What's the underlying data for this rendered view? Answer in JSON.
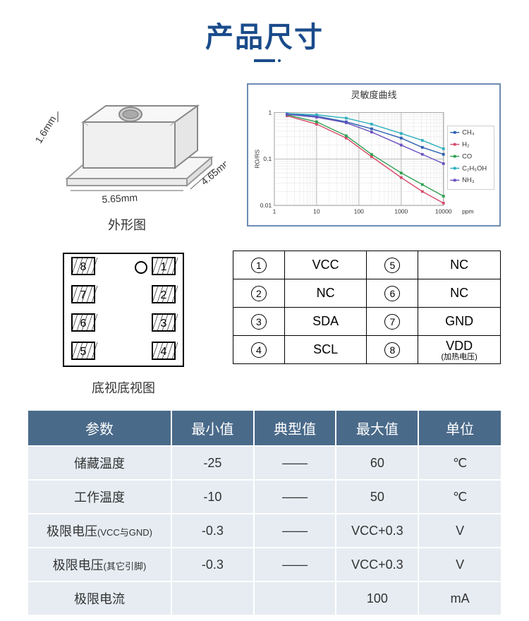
{
  "title": "产品尺寸",
  "package": {
    "caption": "外形图",
    "dim_h": "1.6mm",
    "dim_l": "5.65mm",
    "dim_w": "4.65mm",
    "body_fill": "#f7f7f7",
    "body_stroke": "#888888",
    "hole_fill": "#cccccc"
  },
  "chart": {
    "title": "灵敏度曲线",
    "border_color": "#6e8cb5",
    "plot_bg": "#ffffff",
    "grid_color": "#b0b0b0",
    "grid_minor_color": "#e0e0e0",
    "x_label": "ppm",
    "y_label": "RO/RS",
    "x_ticks": [
      "1",
      "10",
      "100",
      "1000",
      "10000"
    ],
    "y_ticks": [
      "0.01",
      "0.1",
      "1"
    ],
    "xlim_log": [
      0,
      4
    ],
    "ylim_log": [
      -2,
      0
    ],
    "series": [
      {
        "name": "CH₄",
        "color": "#2b5fb0",
        "marker": "diamond",
        "pts": [
          [
            0.3,
            -0.03
          ],
          [
            1.0,
            -0.08
          ],
          [
            1.7,
            -0.2
          ],
          [
            2.3,
            -0.35
          ],
          [
            3.0,
            -0.55
          ],
          [
            3.5,
            -0.75
          ],
          [
            4.0,
            -0.9
          ]
        ]
      },
      {
        "name": "H₂",
        "color": "#d94b6b",
        "marker": "square",
        "pts": [
          [
            0.3,
            -0.07
          ],
          [
            1.0,
            -0.25
          ],
          [
            1.7,
            -0.55
          ],
          [
            2.3,
            -0.95
          ],
          [
            3.0,
            -1.4
          ],
          [
            3.5,
            -1.7
          ],
          [
            4.0,
            -1.95
          ]
        ]
      },
      {
        "name": "CO",
        "color": "#2fa050",
        "marker": "triangle",
        "pts": [
          [
            0.3,
            -0.05
          ],
          [
            1.0,
            -0.2
          ],
          [
            1.7,
            -0.5
          ],
          [
            2.3,
            -0.9
          ],
          [
            3.0,
            -1.3
          ],
          [
            3.5,
            -1.55
          ],
          [
            4.0,
            -1.8
          ]
        ]
      },
      {
        "name": "C₂H₅OH",
        "color": "#2fb0c0",
        "marker": "x",
        "pts": [
          [
            0.3,
            -0.02
          ],
          [
            1.0,
            -0.05
          ],
          [
            1.7,
            -0.12
          ],
          [
            2.3,
            -0.25
          ],
          [
            3.0,
            -0.45
          ],
          [
            3.5,
            -0.6
          ],
          [
            4.0,
            -0.78
          ]
        ]
      },
      {
        "name": "NH₃",
        "color": "#6a50c0",
        "marker": "circle",
        "pts": [
          [
            0.3,
            -0.04
          ],
          [
            1.0,
            -0.1
          ],
          [
            1.7,
            -0.22
          ],
          [
            2.3,
            -0.42
          ],
          [
            3.0,
            -0.7
          ],
          [
            3.5,
            -0.9
          ],
          [
            4.0,
            -1.1
          ]
        ]
      }
    ]
  },
  "pinout": {
    "caption": "底视底视图",
    "pins_left": [
      "8",
      "7",
      "6",
      "5"
    ],
    "pins_right": [
      "1",
      "2",
      "3",
      "4"
    ]
  },
  "pin_table": {
    "rows": [
      {
        "n1": "①",
        "l1": "VCC",
        "n2": "⑤",
        "l2": "NC"
      },
      {
        "n1": "②",
        "l1": "NC",
        "n2": "⑥",
        "l2": "NC"
      },
      {
        "n1": "③",
        "l1": "SDA",
        "n2": "⑦",
        "l2": "GND"
      },
      {
        "n1": "④",
        "l1": "SCL",
        "n2": "⑧",
        "l2": "VDD",
        "sub2": "(加热电压)"
      }
    ]
  },
  "spec_table": {
    "header_bg": "#4a6a8a",
    "row_bg": "#e6ecf2",
    "columns": [
      "参数",
      "最小值",
      "典型值",
      "最大值",
      "单位"
    ],
    "rows": [
      {
        "param": "储藏温度",
        "min": "-25",
        "typ": "——",
        "max": "60",
        "unit": "℃"
      },
      {
        "param": "工作温度",
        "min": "-10",
        "typ": "——",
        "max": "50",
        "unit": "℃"
      },
      {
        "param": "极限电压",
        "param_sub": "(VCC与GND)",
        "min": "-0.3",
        "typ": "——",
        "max": "VCC+0.3",
        "unit": "V"
      },
      {
        "param": "极限电压",
        "param_sub": "(其它引脚)",
        "min": "-0.3",
        "typ": "——",
        "max": "VCC+0.3",
        "unit": "V"
      },
      {
        "param": "极限电流",
        "min": "",
        "typ": "",
        "max": "100",
        "unit": "mA"
      }
    ]
  }
}
